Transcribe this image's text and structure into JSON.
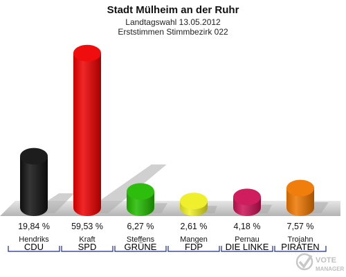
{
  "header": {
    "title": "Stadt Mülheim an der Ruhr",
    "subtitle1": "Landtagswahl 13.05.2012",
    "subtitle2": "Erststimmen Stimmbezirk 022"
  },
  "chart_data": {
    "type": "bar",
    "title": "Stadt Mülheim an der Ruhr",
    "categories": [
      "CDU",
      "SPD",
      "GRÜNE",
      "FDP",
      "DIE LINKE",
      "PIRATEN"
    ],
    "candidates": [
      "Hendriks",
      "Kraft",
      "Steffens",
      "Mangen",
      "Pernau",
      "Trojahn"
    ],
    "values": [
      19.84,
      59.53,
      6.27,
      2.61,
      4.18,
      7.57
    ],
    "value_labels": [
      "19,84 %",
      "59,53 %",
      "6,27 %",
      "2,61 %",
      "4,18 %",
      "7,57 %"
    ],
    "colors": [
      "#111111",
      "#ee0000",
      "#22bb00",
      "#eeee22",
      "#cc1155",
      "#ee7700"
    ],
    "grid": false
  },
  "watermark": {
    "line1": "VOTE",
    "line2": "MANAGER"
  }
}
